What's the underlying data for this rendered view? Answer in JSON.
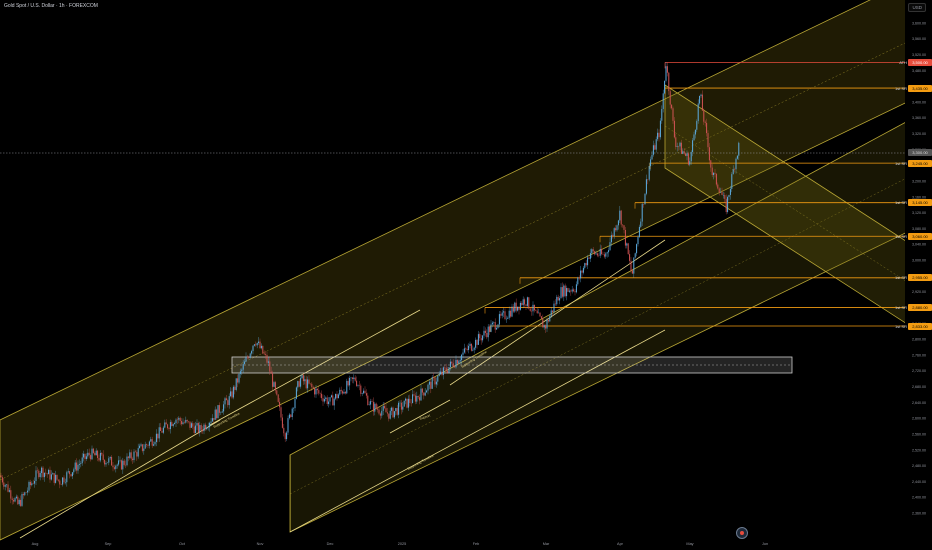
{
  "header": {
    "symbol_title": "Gold Spot / U.S. Dollar · 1h · FOREXCOM",
    "currency": "USD"
  },
  "price_axis": {
    "ticks": [
      "3,640.00",
      "3,600.00",
      "3,560.00",
      "3,520.00",
      "3,480.00",
      "3,440.00",
      "3,400.00",
      "3,360.00",
      "3,320.00",
      "3,280.00",
      "3,240.00",
      "3,200.00",
      "3,160.00",
      "3,120.00",
      "3,080.00",
      "3,040.00",
      "3,000.00",
      "2,960.00",
      "2,920.00",
      "2,880.00",
      "2,840.00",
      "2,800.00",
      "2,760.00",
      "2,720.00",
      "2,680.00",
      "2,640.00",
      "2,600.00",
      "2,560.00",
      "2,520.00",
      "2,480.00",
      "2,440.00",
      "2,400.00",
      "2,360.00"
    ]
  },
  "time_axis": {
    "labels": [
      "Aug",
      "Sep",
      "Oct",
      "Nov",
      "Dec",
      "2025",
      "Feb",
      "Mar",
      "Apr",
      "May",
      "Jun"
    ]
  },
  "levels": [
    {
      "label": "ATH",
      "price": "3,500.00",
      "color": "#e74c3c"
    },
    {
      "label": "1st SR",
      "price": "3,435.00",
      "color": "#f39c12"
    },
    {
      "label": "1st SR",
      "price": "3,245.00",
      "color": "#f39c12"
    },
    {
      "label": "1st SR",
      "price": "3,145.00",
      "color": "#f39c12"
    },
    {
      "label": "1st SR",
      "price": "3,060.00",
      "color": "#f39c12"
    },
    {
      "label": "1st SR",
      "price": "2,955.00",
      "color": "#f39c12"
    },
    {
      "label": "1st SR",
      "price": "2,880.00",
      "color": "#f39c12"
    },
    {
      "label": "1st SR",
      "price": "2,833.00",
      "color": "#f39c12"
    }
  ],
  "current_price": "3,300.00",
  "annotations": {
    "trendline_1": "Supporting Trendline",
    "trendline_2": "Supporting Trendline",
    "trendline_3": "Supporting Trendline",
    "trendline_4": "Support"
  },
  "colors": {
    "background": "#000000",
    "channel_fill": "#8a7a14",
    "level_orange": "#f39c12",
    "level_red": "#e74c3c",
    "candle_up": "#5dade2",
    "candle_down": "#d35454"
  }
}
